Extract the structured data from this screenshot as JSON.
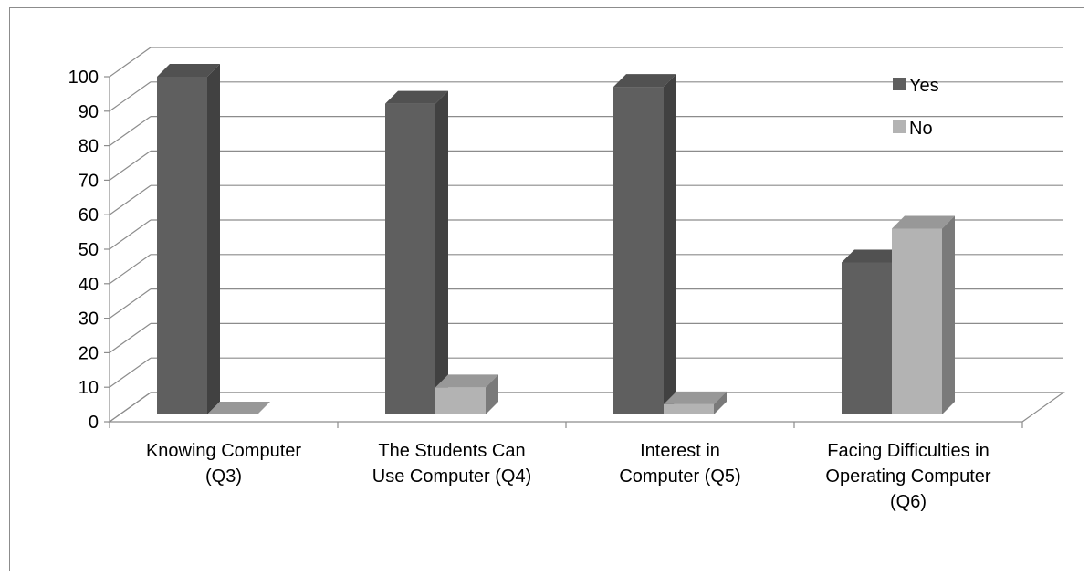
{
  "chart_data": {
    "type": "bar",
    "subtype": "3d-clustered-column",
    "categories": [
      [
        "Knowing Computer",
        "(Q3)"
      ],
      [
        "The Students Can",
        "Use Computer (Q4)"
      ],
      [
        "Interest in",
        "Computer (Q5)"
      ],
      [
        "Facing Difficulties in",
        "Operating Computer",
        "(Q6)"
      ]
    ],
    "series": [
      {
        "name": "Yes",
        "values": [
          100,
          92,
          97,
          45
        ],
        "color": "#5f5f5f"
      },
      {
        "name": "No",
        "values": [
          0,
          8,
          3,
          55
        ],
        "color": "#b3b3b3"
      }
    ],
    "ylim": [
      0,
      100
    ],
    "yticks": [
      "0",
      "10",
      "20",
      "30",
      "40",
      "50",
      "60",
      "70",
      "80",
      "90",
      "100"
    ],
    "grid": true,
    "legend_position": "right-top"
  }
}
